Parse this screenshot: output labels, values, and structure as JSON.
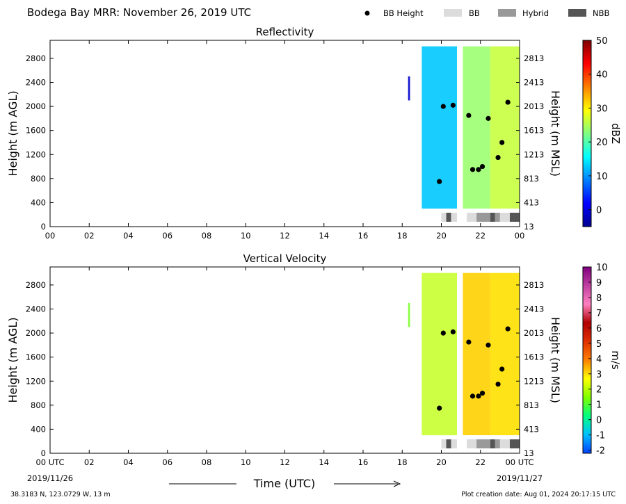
{
  "header": {
    "title": "Bodega Bay MRR:  November 26, 2019 UTC",
    "legend": [
      {
        "label": "BB Height",
        "kind": "dot",
        "color": "#000000"
      },
      {
        "label": "BB",
        "kind": "box",
        "color": "#dcdcdc"
      },
      {
        "label": "Hybrid",
        "kind": "box",
        "color": "#999999"
      },
      {
        "label": "NBB",
        "kind": "box",
        "color": "#555555"
      }
    ]
  },
  "footer": {
    "location": "38.3183 N, 123.0729 W, 13 m",
    "created": "Plot creation date: Aug 01, 2024 20:17:15 UTC",
    "xlabel": "Time (UTC)"
  },
  "chart_data": [
    {
      "type": "heatmap",
      "title": "Reflectivity",
      "ylabel": "Height (m AGL)",
      "ylabel_right": "Height (m MSL)",
      "colorbar_label": "dBZ",
      "xlim": [
        0,
        24
      ],
      "ylim": [
        0,
        3100
      ],
      "x_ticks": [
        "00",
        "02",
        "04",
        "06",
        "08",
        "10",
        "12",
        "14",
        "16",
        "18",
        "20",
        "22",
        "00"
      ],
      "y_ticks": [
        0,
        400,
        800,
        1200,
        1600,
        2000,
        2400,
        2800
      ],
      "y_ticks_right": [
        13,
        413,
        813,
        1213,
        1613,
        2013,
        2413,
        2813
      ],
      "colorbar": {
        "min": -5,
        "max": 50,
        "ticks": [
          0,
          10,
          20,
          30,
          40,
          50
        ],
        "colors": [
          "#00008f",
          "#0000ff",
          "#0080ff",
          "#00ffff",
          "#80ff80",
          "#ffff00",
          "#ff8000",
          "#ff0000",
          "#800000"
        ]
      },
      "data_segments": [
        {
          "t_start": 18.3,
          "t_end": 18.4,
          "h_bottom": 2100,
          "h_top": 2500,
          "color": "#0000cc"
        },
        {
          "t_start": 19.0,
          "t_end": 20.8,
          "h_bottom": 300,
          "h_top": 3000,
          "color": "#00c8ff"
        },
        {
          "t_start": 21.1,
          "t_end": 22.5,
          "h_bottom": 300,
          "h_top": 3000,
          "color": "#9cff70"
        },
        {
          "t_start": 22.5,
          "t_end": 24.0,
          "h_bottom": 300,
          "h_top": 3000,
          "color": "#c8ff40"
        }
      ],
      "bb_height_points": [
        {
          "t": 19.9,
          "h": 750
        },
        {
          "t": 20.1,
          "h": 2000
        },
        {
          "t": 20.6,
          "h": 2020
        },
        {
          "t": 21.4,
          "h": 1850
        },
        {
          "t": 21.6,
          "h": 950
        },
        {
          "t": 21.9,
          "h": 950
        },
        {
          "t": 22.1,
          "h": 1000
        },
        {
          "t": 22.4,
          "h": 1800
        },
        {
          "t": 22.9,
          "h": 1150
        },
        {
          "t": 23.1,
          "h": 1400
        },
        {
          "t": 23.4,
          "h": 2070
        }
      ],
      "bb_type_bar": [
        {
          "t_start": 20.0,
          "t_end": 20.25,
          "type": "BB"
        },
        {
          "t_start": 20.25,
          "t_end": 20.5,
          "type": "NBB"
        },
        {
          "t_start": 20.5,
          "t_end": 20.8,
          "type": "BB"
        },
        {
          "t_start": 21.3,
          "t_end": 21.8,
          "type": "BB"
        },
        {
          "t_start": 21.8,
          "t_end": 22.5,
          "type": "Hybrid"
        },
        {
          "t_start": 22.5,
          "t_end": 22.75,
          "type": "NBB"
        },
        {
          "t_start": 22.75,
          "t_end": 23.0,
          "type": "Hybrid"
        },
        {
          "t_start": 23.0,
          "t_end": 23.5,
          "type": "BB"
        },
        {
          "t_start": 23.5,
          "t_end": 24.0,
          "type": "NBB"
        }
      ]
    },
    {
      "type": "heatmap",
      "title": "Vertical Velocity",
      "ylabel": "Height (m AGL)",
      "ylabel_right": "Height (m MSL)",
      "colorbar_label": "m/s",
      "xlim": [
        0,
        24
      ],
      "ylim": [
        0,
        3100
      ],
      "x_ticks": [
        "00 UTC",
        "02",
        "04",
        "06",
        "08",
        "10",
        "12",
        "14",
        "16",
        "18",
        "20",
        "22",
        "00 UTC"
      ],
      "x_date_labels": [
        "2019/11/26",
        "2019/11/27"
      ],
      "y_ticks": [
        0,
        400,
        800,
        1200,
        1600,
        2000,
        2400,
        2800
      ],
      "y_ticks_right": [
        13,
        413,
        813,
        1213,
        1613,
        2013,
        2413,
        2813
      ],
      "colorbar": {
        "min": -2.2,
        "max": 10,
        "ticks": [
          -2,
          -1,
          0,
          1,
          2,
          3,
          4,
          5,
          6,
          7,
          8,
          9,
          10
        ],
        "colors": [
          "#0040ff",
          "#00c0ff",
          "#00ff80",
          "#80ff00",
          "#ffff00",
          "#ff8000",
          "#e03000",
          "#b00000",
          "#ff80c0",
          "#c040a0",
          "#800080"
        ]
      },
      "data_segments": [
        {
          "t_start": 18.3,
          "t_end": 18.4,
          "h_bottom": 2100,
          "h_top": 2500,
          "color": "#7fff30"
        },
        {
          "t_start": 19.0,
          "t_end": 20.8,
          "h_bottom": 300,
          "h_top": 3000,
          "color": "#c8ff30"
        },
        {
          "t_start": 21.1,
          "t_end": 22.5,
          "h_bottom": 300,
          "h_top": 3000,
          "color": "#ffd000"
        },
        {
          "t_start": 22.5,
          "t_end": 24.0,
          "h_bottom": 300,
          "h_top": 3000,
          "color": "#ffe000"
        }
      ],
      "bb_height_points": [
        {
          "t": 19.9,
          "h": 750
        },
        {
          "t": 20.1,
          "h": 2000
        },
        {
          "t": 20.6,
          "h": 2020
        },
        {
          "t": 21.4,
          "h": 1850
        },
        {
          "t": 21.6,
          "h": 950
        },
        {
          "t": 21.9,
          "h": 950
        },
        {
          "t": 22.1,
          "h": 1000
        },
        {
          "t": 22.4,
          "h": 1800
        },
        {
          "t": 22.9,
          "h": 1150
        },
        {
          "t": 23.1,
          "h": 1400
        },
        {
          "t": 23.4,
          "h": 2070
        }
      ],
      "bb_type_bar": [
        {
          "t_start": 20.0,
          "t_end": 20.25,
          "type": "BB"
        },
        {
          "t_start": 20.25,
          "t_end": 20.5,
          "type": "NBB"
        },
        {
          "t_start": 20.5,
          "t_end": 20.8,
          "type": "BB"
        },
        {
          "t_start": 21.3,
          "t_end": 21.8,
          "type": "BB"
        },
        {
          "t_start": 21.8,
          "t_end": 22.5,
          "type": "Hybrid"
        },
        {
          "t_start": 22.5,
          "t_end": 22.75,
          "type": "NBB"
        },
        {
          "t_start": 22.75,
          "t_end": 23.0,
          "type": "Hybrid"
        },
        {
          "t_start": 23.0,
          "t_end": 23.5,
          "type": "BB"
        },
        {
          "t_start": 23.5,
          "t_end": 24.0,
          "type": "NBB"
        }
      ]
    }
  ]
}
